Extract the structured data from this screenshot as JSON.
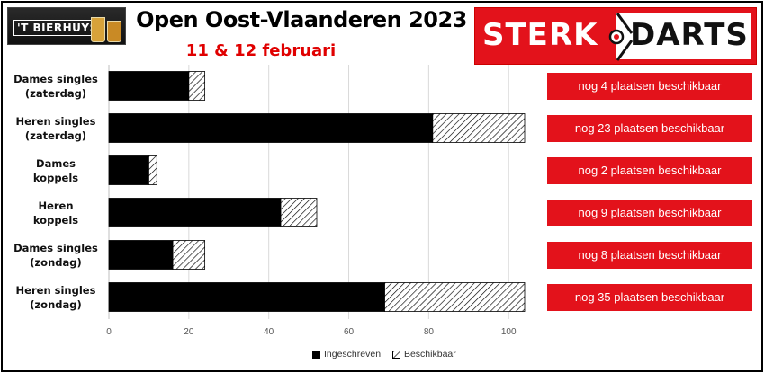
{
  "header": {
    "title": "Open Oost-Vlaanderen 2023",
    "subtitle": "11 & 12 februari",
    "logo_left_text": "'T BIERHUYS",
    "logo_right_part1": "STERK",
    "logo_right_part2": "DARTS"
  },
  "colors": {
    "accent": "#e3121b",
    "ingeschreven": "#000000",
    "subtitle": "#e00000"
  },
  "chart_data": {
    "type": "bar",
    "orientation": "horizontal",
    "stacked": true,
    "categories": [
      [
        "Dames singles",
        "(zaterdag)"
      ],
      [
        "Heren singles",
        "(zaterdag)"
      ],
      [
        "Dames",
        "koppels"
      ],
      [
        "Heren",
        "koppels"
      ],
      [
        "Dames singles",
        "(zondag)"
      ],
      [
        "Heren singles",
        "(zondag)"
      ]
    ],
    "series": [
      {
        "name": "Ingeschreven",
        "values": [
          20,
          81,
          10,
          43,
          16,
          69
        ],
        "fill": "solid-black"
      },
      {
        "name": "Beschikbaar",
        "values": [
          4,
          23,
          2,
          9,
          8,
          35
        ],
        "fill": "hatched"
      }
    ],
    "xlim": [
      0,
      105
    ],
    "xticks": [
      0,
      20,
      40,
      60,
      80,
      100
    ],
    "grid": true,
    "legend_position": "bottom"
  },
  "availability_notes": [
    "nog 4 plaatsen beschikbaar",
    "nog 23 plaatsen beschikbaar",
    "nog 2 plaatsen beschikbaar",
    "nog 9 plaatsen beschikbaar",
    "nog 8 plaatsen beschikbaar",
    "nog 35 plaatsen beschikbaar"
  ]
}
